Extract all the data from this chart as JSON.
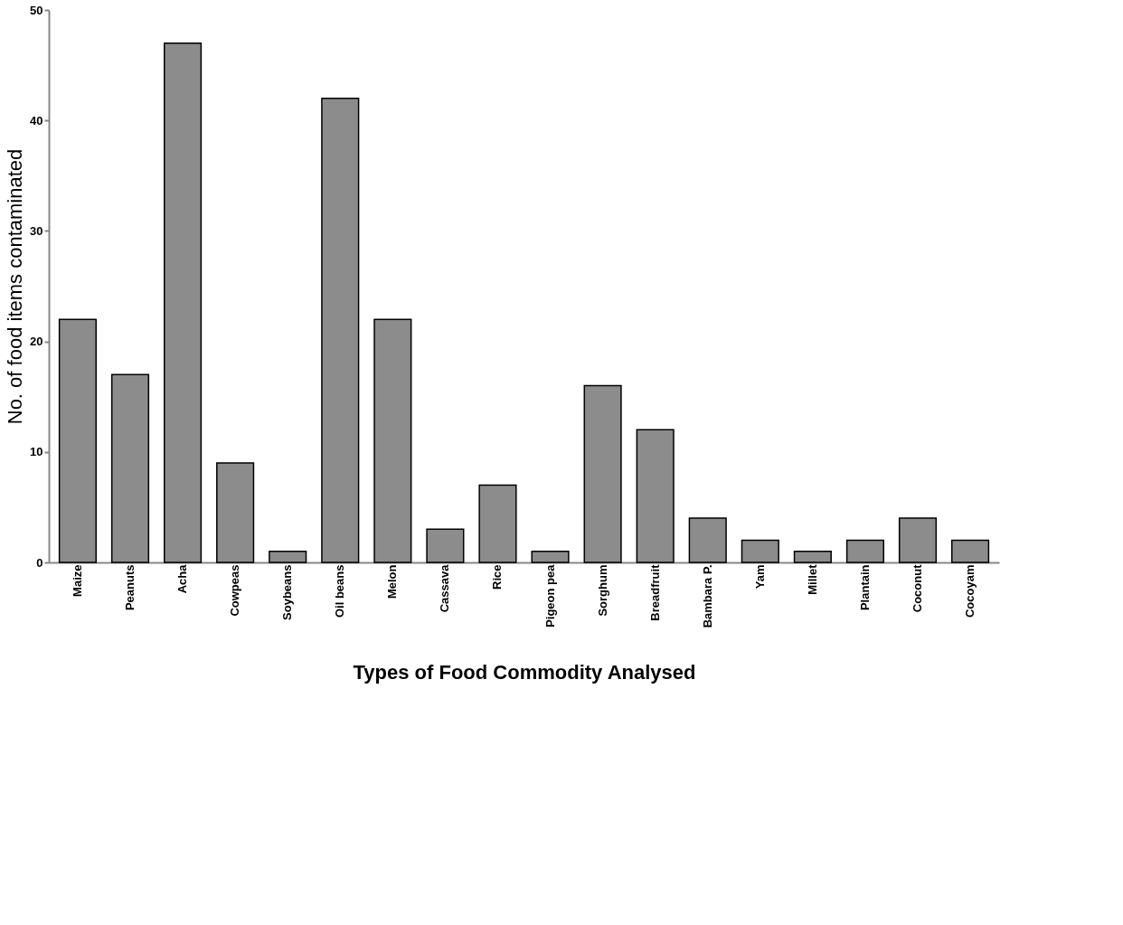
{
  "chart_data": {
    "type": "bar",
    "xlabel": "Types of Food Commodity Analysed",
    "ylabel": "No. of food items contaminated",
    "categories": [
      "Maize",
      "Peanuts",
      "Acha",
      "Cowpeas",
      "Soybeans",
      "Oil beans",
      "Melon",
      "Cassava",
      "Rice",
      "Pigeon pea",
      "Sorghum",
      "Breadfruit",
      "Bambara P.",
      "Yam",
      "Millet",
      "Plantain",
      "Coconut",
      "Cocoyam"
    ],
    "values": [
      22,
      17,
      47,
      9,
      1,
      42,
      22,
      3,
      7,
      1,
      16,
      12,
      4,
      2,
      1,
      2,
      4,
      2
    ],
    "color": "#8c8c8c",
    "ylim": [
      0,
      50
    ],
    "yticks": [
      0,
      10,
      20,
      30,
      40,
      50
    ],
    "grid": false
  }
}
